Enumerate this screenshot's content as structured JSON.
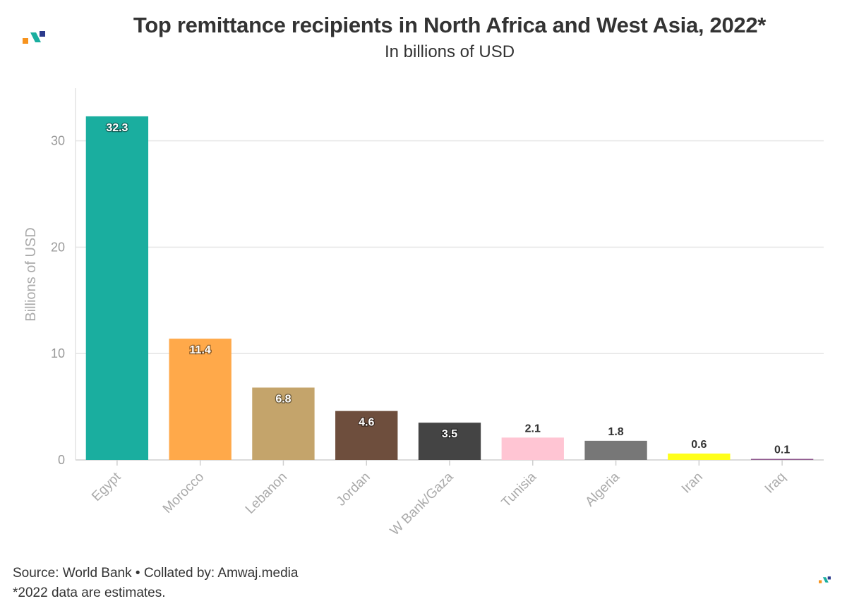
{
  "header": {
    "title": "Top remittance recipients in North Africa and West Asia, 2022*",
    "subtitle": "In billions of USD"
  },
  "footer": {
    "source": "Source: World Bank • Collated by: Amwaj.media",
    "note": "*2022 data are estimates."
  },
  "logo": {
    "icon": "amwaj-logo-icon",
    "colors": [
      "#f7931e",
      "#1aae9f",
      "#2b3a8c"
    ]
  },
  "chart_data": {
    "type": "bar",
    "categories": [
      "Egypt",
      "Morocco",
      "Lebanon",
      "Jordan",
      "W Bank/Gaza",
      "Tunisia",
      "Algeria",
      "Iran",
      "Iraq"
    ],
    "values": [
      32.3,
      11.4,
      6.8,
      4.6,
      3.5,
      2.1,
      1.8,
      0.6,
      0.1
    ],
    "data_labels": [
      "32.3",
      "11.4",
      "6.8",
      "4.6",
      "3.5",
      "2.1",
      "1.8",
      "0.6",
      "0.1"
    ],
    "colors": [
      "#1aae9f",
      "#ffa94a",
      "#c4a46b",
      "#6e4e3d",
      "#444444",
      "#ffc5d3",
      "#777777",
      "#ffff1a",
      "#8f5a8e"
    ],
    "ylabel": "Billions of USD",
    "xlabel": "",
    "ylim": [
      0,
      35
    ],
    "yticks": [
      0,
      10,
      20,
      30
    ],
    "ytick_labels": [
      "0",
      "10",
      "20",
      "30"
    ],
    "grid": true,
    "legend": "none"
  }
}
